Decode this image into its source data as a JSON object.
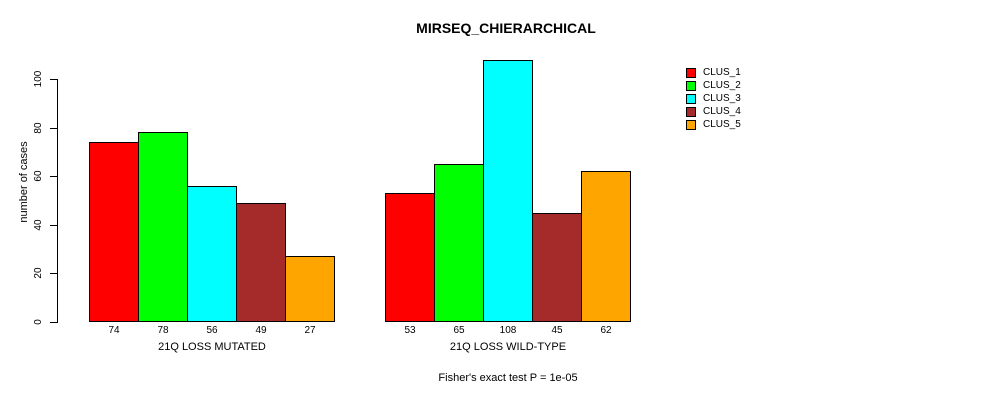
{
  "chart_data": {
    "type": "bar",
    "title": "MIRSEQ_CHIERARCHICAL",
    "ylabel": "number of cases",
    "xlabel": "",
    "footnote": "Fisher's exact test P = 1e-05",
    "ylim": [
      0,
      110
    ],
    "yticks": [
      0,
      20,
      40,
      60,
      80,
      100
    ],
    "grid": false,
    "legend_position": "top-right",
    "bar_value_labels": true,
    "categories": [
      "21Q LOSS MUTATED",
      "21Q LOSS WILD-TYPE"
    ],
    "series": [
      {
        "name": "CLUS_1",
        "color": "#FF0000",
        "values": [
          74,
          53
        ]
      },
      {
        "name": "CLUS_2",
        "color": "#00FF00",
        "values": [
          78,
          65
        ]
      },
      {
        "name": "CLUS_3",
        "color": "#00FFFF",
        "values": [
          56,
          108
        ]
      },
      {
        "name": "CLUS_4",
        "color": "#A52A2A",
        "values": [
          49,
          45
        ]
      },
      {
        "name": "CLUS_5",
        "color": "#FFA500",
        "values": [
          27,
          62
        ]
      }
    ]
  }
}
